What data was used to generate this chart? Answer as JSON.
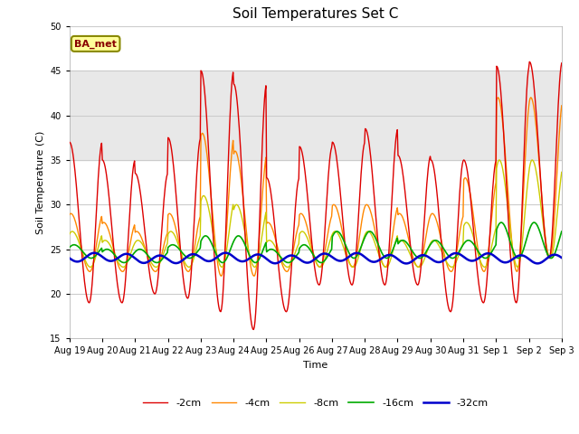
{
  "title": "Soil Temperatures Set C",
  "xlabel": "Time",
  "ylabel": "Soil Temperature (C)",
  "ylim": [
    15,
    50
  ],
  "yticks": [
    15,
    20,
    25,
    30,
    35,
    40,
    45,
    50
  ],
  "xlabels": [
    "Aug 19",
    "Aug 20",
    "Aug 21",
    "Aug 22",
    "Aug 23",
    "Aug 24",
    "Aug 25",
    "Aug 26",
    "Aug 27",
    "Aug 28",
    "Aug 29",
    "Aug 30",
    "Aug 31",
    "Sep 1",
    "Sep 2",
    "Sep 3"
  ],
  "series_labels": [
    "-2cm",
    "-4cm",
    "-8cm",
    "-16cm",
    "-32cm"
  ],
  "series_colors": [
    "#dd0000",
    "#ff8800",
    "#cccc00",
    "#00aa00",
    "#0000cc"
  ],
  "series_linewidths": [
    1.0,
    1.0,
    1.0,
    1.2,
    1.8
  ],
  "annotation_text": "BA_met",
  "annotation_bg": "#ffff99",
  "annotation_border": "#888800",
  "annotation_text_color": "#880000",
  "grid_color": "#cccccc",
  "figure_bg": "#ffffff",
  "plot_bg": "#ffffff",
  "shaded_band": [
    35,
    45
  ],
  "shaded_color": "#e8e8e8",
  "n_days": 15,
  "n_points_per_day": 48,
  "day_peaks_2cm": [
    37,
    35,
    33.5,
    37.5,
    45,
    43.5,
    33,
    36.5,
    37,
    38.5,
    35.5,
    35,
    35,
    45.5,
    46
  ],
  "day_troughs_2cm": [
    19,
    19,
    20,
    19.5,
    18,
    16,
    18,
    21,
    21,
    21,
    21,
    18,
    19,
    19,
    24
  ],
  "day_peaks_4cm": [
    29,
    28,
    27,
    29,
    38,
    36,
    28,
    29,
    30,
    30,
    29,
    29,
    33,
    42,
    42
  ],
  "day_troughs_4cm": [
    22.5,
    22.5,
    22.5,
    22.5,
    22,
    22,
    22.5,
    23,
    23,
    23,
    23,
    22.5,
    22.5,
    22.5,
    24
  ],
  "day_peaks_8cm": [
    27,
    26,
    26,
    27,
    31,
    30,
    26,
    27,
    27,
    27,
    26,
    26,
    28,
    35,
    35
  ],
  "day_troughs_8cm": [
    23,
    23,
    23,
    23,
    23,
    23,
    23,
    23,
    23,
    23,
    23,
    23,
    23,
    23,
    24
  ],
  "day_peaks_16cm": [
    25.5,
    25,
    25,
    25.5,
    26.5,
    26.5,
    25,
    25.5,
    27,
    27,
    26,
    26,
    26,
    28,
    28
  ],
  "day_troughs_16cm": [
    24,
    23.5,
    23.5,
    24,
    23.5,
    23.5,
    23.5,
    23.5,
    24,
    24,
    24,
    24,
    24,
    24,
    24
  ],
  "base_32cm": 24.0
}
